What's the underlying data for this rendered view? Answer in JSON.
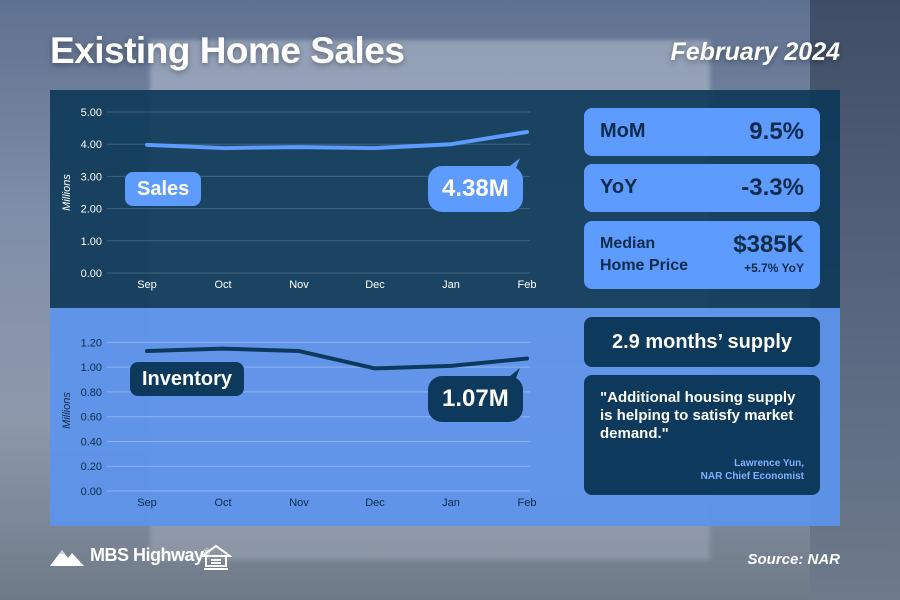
{
  "header": {
    "title": "Existing Home Sales",
    "date": "February 2024"
  },
  "sales_panel": {
    "tag": "Sales",
    "callout": "4.38M",
    "stats": {
      "mom_label": "MoM",
      "mom_value": "9.5%",
      "yoy_label": "YoY",
      "yoy_value": "-3.3%",
      "median_label_line1": "Median",
      "median_label_line2": "Home Price",
      "median_value": "$385K",
      "median_sub": "+5.7% YoY"
    }
  },
  "inventory_panel": {
    "tag": "Inventory",
    "callout": "1.07M",
    "supply": "2.9 months’ supply",
    "quote": "\"Additional housing supply is helping to satisfy market demand.\"",
    "quote_author": "Lawrence Yun,",
    "quote_author_title": "NAR Chief Economist"
  },
  "footer": {
    "brand": "MBS Highway",
    "brand_mark": "®",
    "source": "Source: NAR"
  },
  "colors": {
    "dark_navy": "#0d3a5c",
    "accent_blue": "#5d9bff",
    "top_panel": "#0c3858",
    "bottom_panel": "#5c94ee"
  },
  "icons": {
    "brand_logo": "mountain-logo-icon",
    "equal_housing": "equal-housing-icon"
  },
  "chart_data": [
    {
      "type": "line",
      "series": [
        {
          "name": "Sales",
          "values": [
            3.98,
            3.88,
            3.91,
            3.88,
            4.0,
            4.38
          ]
        }
      ],
      "categories": [
        "Sep",
        "Oct",
        "Nov",
        "Dec",
        "Jan",
        "Feb"
      ],
      "yticks": [
        "0.00",
        "1.00",
        "2.00",
        "3.00",
        "4.00",
        "5.00"
      ],
      "ylim": [
        0,
        5
      ],
      "ylabel": "Millions",
      "grid": true,
      "line_color": "#5d9bff"
    },
    {
      "type": "line",
      "series": [
        {
          "name": "Inventory",
          "values": [
            1.13,
            1.15,
            1.13,
            0.99,
            1.01,
            1.07
          ]
        }
      ],
      "categories": [
        "Sep",
        "Oct",
        "Nov",
        "Dec",
        "Jan",
        "Feb"
      ],
      "yticks": [
        "0.00",
        "0.20",
        "0.40",
        "0.60",
        "0.80",
        "1.00",
        "1.20"
      ],
      "ylim": [
        0,
        1.3
      ],
      "ylabel": "Millions",
      "grid": true,
      "line_color": "#0d3a5c"
    }
  ]
}
